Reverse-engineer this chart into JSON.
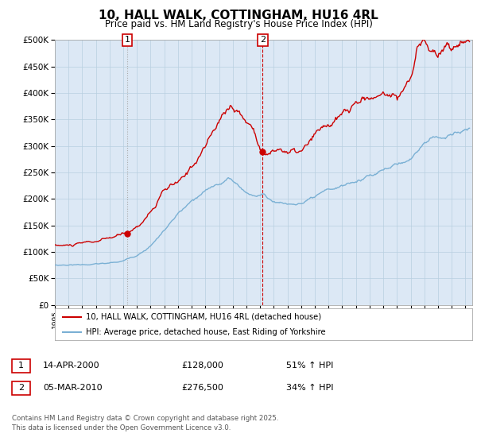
{
  "title": "10, HALL WALK, COTTINGHAM, HU16 4RL",
  "subtitle": "Price paid vs. HM Land Registry's House Price Index (HPI)",
  "legend_line1": "10, HALL WALK, COTTINGHAM, HU16 4RL (detached house)",
  "legend_line2": "HPI: Average price, detached house, East Riding of Yorkshire",
  "marker1_date": "14-APR-2000",
  "marker1_price": "£128,000",
  "marker1_pct": "51% ↑ HPI",
  "marker1_year": 2000.29,
  "marker1_value": 128000,
  "marker2_date": "05-MAR-2010",
  "marker2_price": "£276,500",
  "marker2_pct": "34% ↑ HPI",
  "marker2_year": 2010.18,
  "marker2_value": 276500,
  "footer": "Contains HM Land Registry data © Crown copyright and database right 2025.\nThis data is licensed under the Open Government Licence v3.0.",
  "red_color": "#cc0000",
  "blue_color": "#7ab0d4",
  "background_color": "#ffffff",
  "plot_bg_color": "#dce8f5",
  "grid_color": "#b8cfe0",
  "ylim": [
    0,
    500000
  ],
  "yticks": [
    0,
    50000,
    100000,
    150000,
    200000,
    250000,
    300000,
    350000,
    400000,
    450000,
    500000
  ],
  "xlim_start": 1995,
  "xlim_end": 2025.5
}
